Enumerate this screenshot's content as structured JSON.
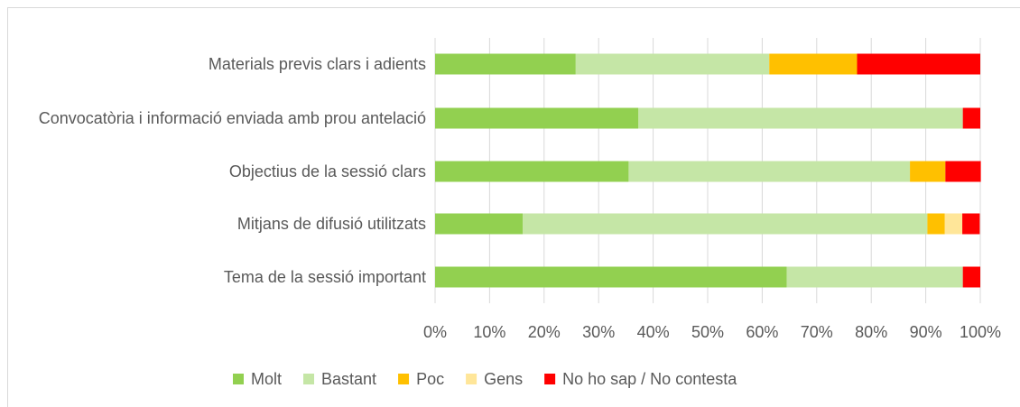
{
  "chart_data": {
    "type": "stacked-barh",
    "categories": [
      "Materials previs clars i adients",
      "Convocatòria i informació enviada amb prou antelació",
      "Objectius de la sessió clars",
      "Mitjans de difusió utilitzats",
      "Tema de la sessió important"
    ],
    "series": [
      {
        "name": "Molt",
        "color": "#92d050",
        "values": [
          25.8,
          37.3,
          35.5,
          16.1,
          64.5
        ]
      },
      {
        "name": "Bastant",
        "color": "#c5e6a6",
        "values": [
          35.5,
          59.5,
          51.6,
          74.2,
          32.3
        ]
      },
      {
        "name": "Poc",
        "color": "#ffc000",
        "values": [
          16.1,
          0,
          6.5,
          3.2,
          0
        ]
      },
      {
        "name": "Gens",
        "color": "#ffe699",
        "values": [
          0,
          0,
          0,
          3.2,
          0
        ]
      },
      {
        "name": "No ho sap / No contesta",
        "color": "#ff0000",
        "values": [
          22.6,
          3.2,
          6.5,
          3.2,
          3.2
        ]
      }
    ],
    "xlim": [
      0,
      100
    ],
    "xticks": [
      {
        "value": 0,
        "label": "0%"
      },
      {
        "value": 10,
        "label": "10%"
      },
      {
        "value": 20,
        "label": "20%"
      },
      {
        "value": 30,
        "label": "30%"
      },
      {
        "value": 40,
        "label": "40%"
      },
      {
        "value": 50,
        "label": "50%"
      },
      {
        "value": 60,
        "label": "60%"
      },
      {
        "value": 70,
        "label": "70%"
      },
      {
        "value": 80,
        "label": "80%"
      },
      {
        "value": 90,
        "label": "90%"
      },
      {
        "value": 100,
        "label": "100%"
      }
    ],
    "grid": true,
    "legend": "bottom"
  }
}
